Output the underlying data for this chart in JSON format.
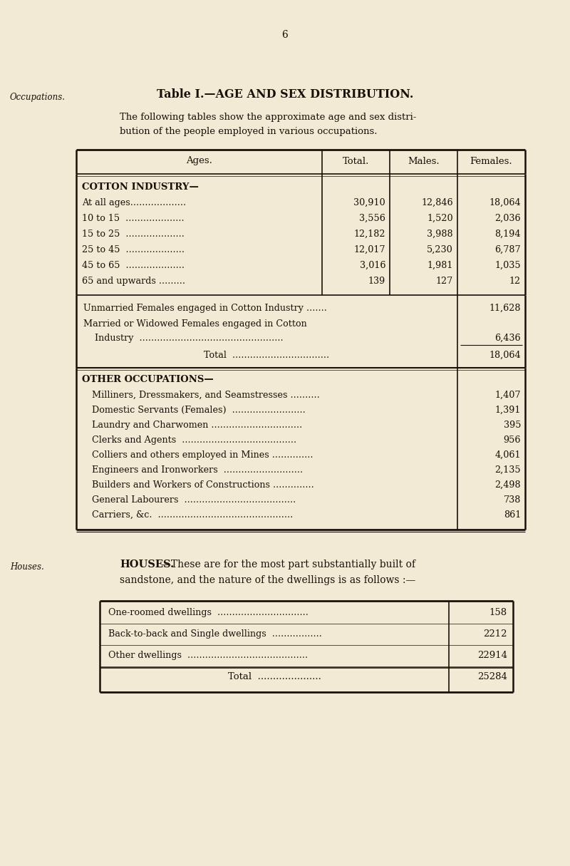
{
  "page_number": "6",
  "bg_color": "#f2ead5",
  "text_color": "#1a1008",
  "margin_label_occupations": "Occupations.",
  "margin_label_houses": "Houses.",
  "table1_title": "Table I.—AGE AND SEX DISTRIBUTION.",
  "intro_text_line1": "The following tables show the approximate age and sex distri-",
  "intro_text_line2": "bution of the people employed in various occupations.",
  "table1_headers": [
    "Ages.",
    "Total.",
    "Males.",
    "Females."
  ],
  "cotton_header": "COTTON INDUSTRY—",
  "cotton_rows": [
    [
      "At all ages...................",
      "30,910",
      "12,846",
      "18,064"
    ],
    [
      "10 to 15  ....................",
      "3,556",
      "1,520",
      "2,036"
    ],
    [
      "15 to 25  ....................",
      "12,182",
      "3,988",
      "8,194"
    ],
    [
      "25 to 45  ....................",
      "12,017",
      "5,230",
      "6,787"
    ],
    [
      "45 to 65  ....................",
      "3,016",
      "1,981",
      "1,035"
    ],
    [
      "65 and upwards .........",
      "139",
      "127",
      "12"
    ]
  ],
  "female_rows": [
    [
      "Unmarried Females engaged in Cotton Industry .......",
      "11,628"
    ],
    [
      "Married or Widowed Females engaged in Cotton",
      ""
    ],
    [
      "    Industry  .................................................",
      "6,436"
    ]
  ],
  "total_row": [
    "Total  .................................",
    "18,064"
  ],
  "other_header": "OTHER OCCUPATIONS—",
  "other_rows": [
    [
      "Milliners, Dressmakers, and Seamstresses ..........",
      "1,407"
    ],
    [
      "Domestic Servants (Females)  .........................",
      "1,391"
    ],
    [
      "Laundry and Charwomen ...............................",
      "395"
    ],
    [
      "Clerks and Agents  .......................................",
      "956"
    ],
    [
      "Colliers and others employed in Mines ..............",
      "4,061"
    ],
    [
      "Engineers and Ironworkers  ...........................",
      "2,135"
    ],
    [
      "Builders and Workers of Constructions ..............",
      "2,498"
    ],
    [
      "General Labourers  ......................................",
      "738"
    ],
    [
      "Carriers, &c.  ..............................................",
      "861"
    ]
  ],
  "houses_bold": "HOUSES.",
  "houses_text": "—These are for the most part substantially built of",
  "houses_text2": "sandstone, and the nature of the dwellings is as follows :—",
  "table2_rows": [
    [
      "One-roomed dwellings  ...............................",
      "158"
    ],
    [
      "Back-to-back and Single dwellings  .................",
      "2212"
    ],
    [
      "Other dwellings  .........................................",
      "22914"
    ],
    [
      "Total  .....................",
      "25284"
    ]
  ]
}
